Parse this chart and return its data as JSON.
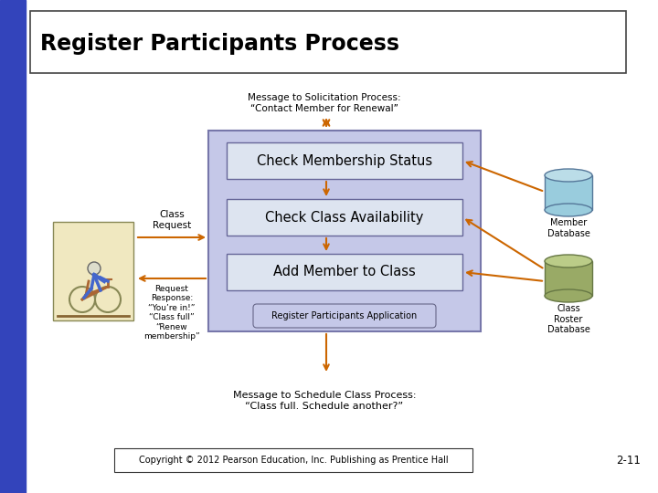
{
  "title": "Register Participants Process",
  "background_color": "#ffffff",
  "blue_bar_color": "#3344bb",
  "title_box_color": "#ffffff",
  "process_box_bg": "#c5c8e8",
  "process_box_border": "#7777aa",
  "inner_box_bg": "#dde4f0",
  "inner_box_border": "#666699",
  "arrow_color": "#cc6600",
  "member_db_top": "#99ccdd",
  "member_db_body": "#99ccdd",
  "member_db_top_ell": "#bbdde8",
  "class_db_top": "#99aa66",
  "class_db_body": "#99aa66",
  "class_db_top_ell": "#bbcc88",
  "person_box_bg": "#f0e8c0",
  "person_box_border": "#888855",
  "copyright_text": "Copyright © 2012 Pearson Education, Inc. Publishing as Prentice Hall",
  "slide_number": "2-11",
  "msg_solicitation": "Message to Solicitation Process:\n“Contact Member for Renewal”",
  "msg_schedule": "Message to Schedule Class Process:\n“Class full. Schedule another?”",
  "class_request_text": "Class\nRequest",
  "response_text": "Request\nResponse:\n“You’re in!”\n“Class full”\n“Renew\nmembership”",
  "box1_text": "Check Membership Status",
  "box2_text": "Check Class Availability",
  "box3_text": "Add Member to Class",
  "app_label": "Register Participants Application",
  "member_db_label": "Member\nDatabase",
  "class_db_label": "Class\nRoster\nDatabase"
}
